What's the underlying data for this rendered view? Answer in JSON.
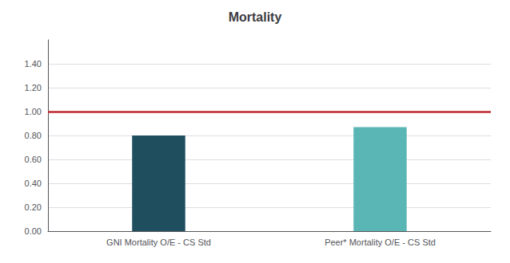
{
  "chart_data": {
    "type": "bar",
    "title": "Mortality",
    "categories": [
      "GNI Mortality O/E - CS Std",
      "Peer* Mortality O/E - CS Std"
    ],
    "values": [
      0.8,
      0.87
    ],
    "colors": [
      "#1f4e5f",
      "#5ab5b5"
    ],
    "ylim": [
      0,
      1.6
    ],
    "yticks": [
      {
        "value": 0.0,
        "label": "0.00"
      },
      {
        "value": 0.2,
        "label": "0.20"
      },
      {
        "value": 0.4,
        "label": "0.40"
      },
      {
        "value": 0.6,
        "label": "0.60"
      },
      {
        "value": 0.8,
        "label": "0.80"
      },
      {
        "value": 1.0,
        "label": "1.00"
      },
      {
        "value": 1.2,
        "label": "1.20"
      },
      {
        "value": 1.4,
        "label": "1.40"
      }
    ],
    "grid": true,
    "reference_lines": [
      {
        "value": 1.0,
        "color": "#c0272d"
      }
    ]
  }
}
